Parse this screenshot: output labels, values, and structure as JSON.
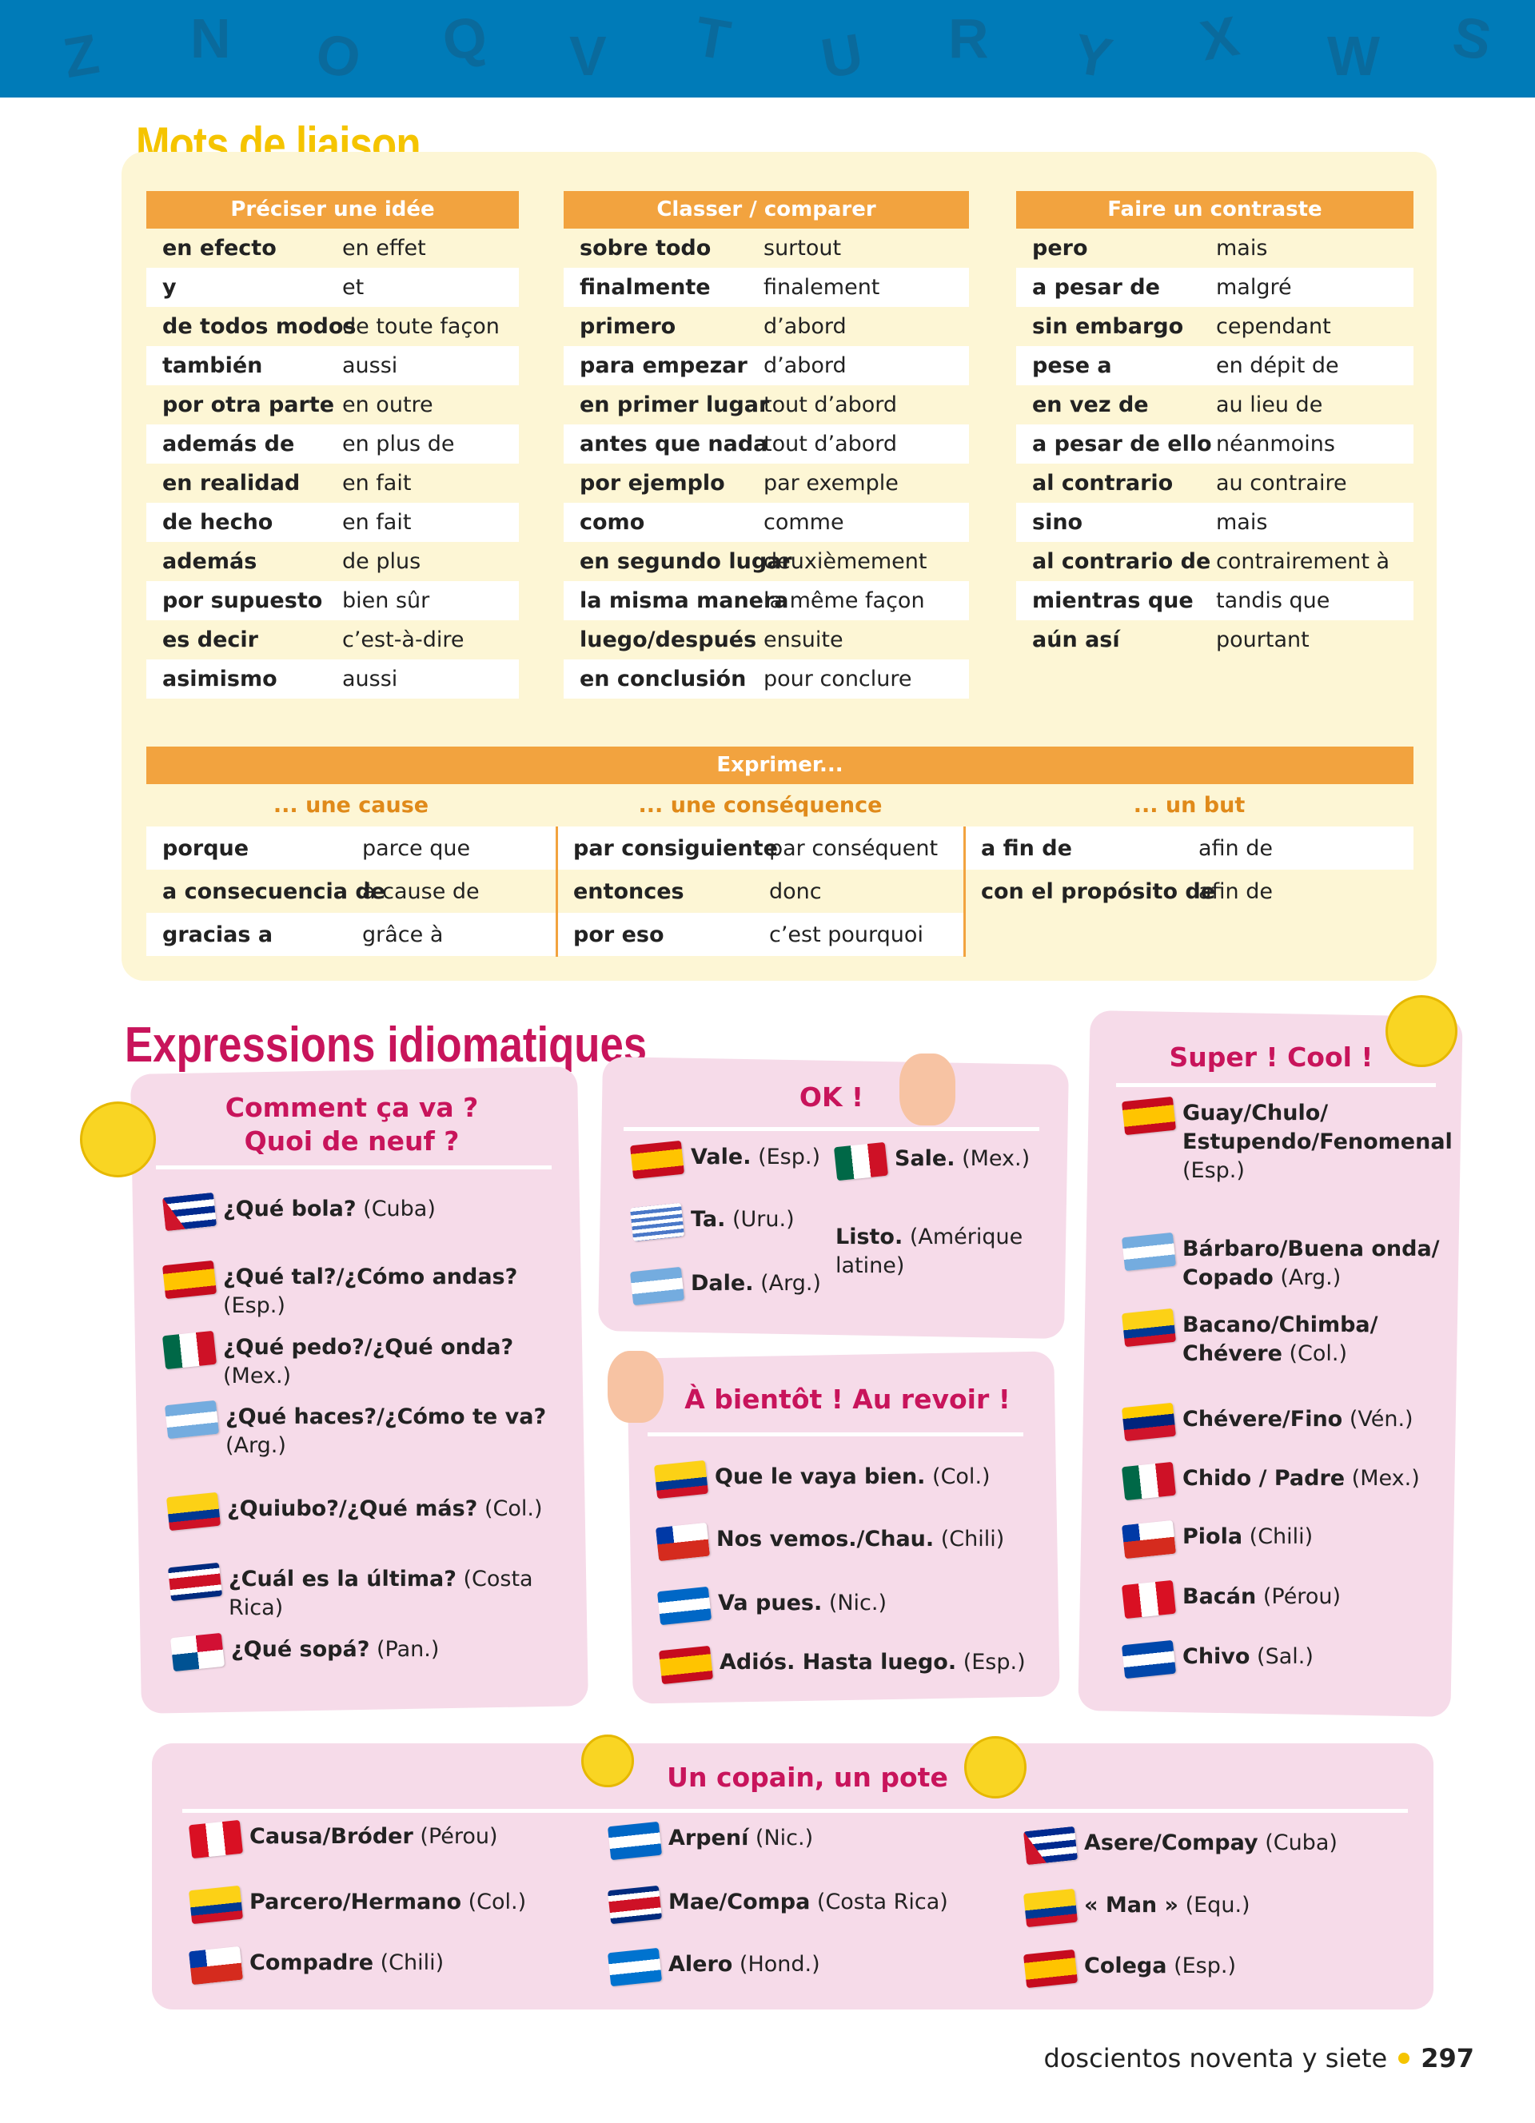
{
  "banner_letters": [
    "Z",
    "N",
    "O",
    "Q",
    "V",
    "T",
    "U",
    "R",
    "Y",
    "X",
    "W",
    "S"
  ],
  "mots": {
    "title": "Mots de liaison",
    "tables": [
      {
        "header": "Préciser une idée",
        "rows": [
          [
            "en efecto",
            "en effet"
          ],
          [
            "y",
            "et"
          ],
          [
            "de todos modos",
            "de toute façon"
          ],
          [
            "también",
            "aussi"
          ],
          [
            "por otra parte",
            "en outre"
          ],
          [
            "además de",
            "en plus de"
          ],
          [
            "en realidad",
            "en fait"
          ],
          [
            "de hecho",
            "en fait"
          ],
          [
            "además",
            "de plus"
          ],
          [
            "por supuesto",
            "bien sûr"
          ],
          [
            "es decir",
            "c’est-à-dire"
          ],
          [
            "asimismo",
            "aussi"
          ]
        ]
      },
      {
        "header": "Classer / comparer",
        "rows": [
          [
            "sobre todo",
            "surtout"
          ],
          [
            "finalmente",
            "finalement"
          ],
          [
            "primero",
            "d’abord"
          ],
          [
            "para empezar",
            "d’abord"
          ],
          [
            "en primer lugar",
            "tout d’abord"
          ],
          [
            "antes que nada",
            "tout d’abord"
          ],
          [
            "por ejemplo",
            "par exemple"
          ],
          [
            "como",
            "comme"
          ],
          [
            "en segundo lugar",
            "deuxièmement"
          ],
          [
            "la misma manera",
            "la même façon"
          ],
          [
            "luego/después",
            "ensuite"
          ],
          [
            "en conclusión",
            "pour conclure"
          ]
        ]
      },
      {
        "header": "Faire un contraste",
        "rows": [
          [
            "pero",
            "mais"
          ],
          [
            "a pesar de",
            "malgré"
          ],
          [
            "sin embargo",
            "cependant"
          ],
          [
            "pese a",
            "en dépit de"
          ],
          [
            "en vez de",
            "au lieu de"
          ],
          [
            "a pesar de ello",
            "néanmoins"
          ],
          [
            "al contrario",
            "au contraire"
          ],
          [
            "sino",
            "mais"
          ],
          [
            "al contrario de",
            "contrairement à"
          ],
          [
            "mientras que",
            "tandis que"
          ],
          [
            "aún así",
            "pourtant"
          ]
        ]
      }
    ],
    "exprimer": {
      "header": "Exprimer...",
      "groups": [
        {
          "title": "... une cause",
          "rows": [
            [
              "porque",
              "parce que"
            ],
            [
              "a consecuencia de",
              "à cause de"
            ],
            [
              "gracias a",
              "grâce à"
            ]
          ]
        },
        {
          "title": "... une conséquence",
          "rows": [
            [
              "par consiguiente",
              "par conséquent"
            ],
            [
              "entonces",
              "donc"
            ],
            [
              "por eso",
              "c’est pourquoi"
            ]
          ]
        },
        {
          "title": "... un but",
          "rows": [
            [
              "a fin de",
              "afin de"
            ],
            [
              "con el propósito de",
              "afin de"
            ]
          ]
        }
      ]
    }
  },
  "expressions": {
    "title": "Expressions idiomatiques",
    "ca_va": {
      "title": "Comment ça va ?\nQuoi de neuf ?",
      "items": [
        {
          "flag": "cu",
          "expr": "¿Qué bola?",
          "country": "(Cuba)"
        },
        {
          "flag": "es",
          "expr": "¿Qué tal?/¿Cómo andas?",
          "country": "(Esp.)"
        },
        {
          "flag": "mx",
          "expr": "¿Qué pedo?/¿Qué onda?",
          "country": "(Mex.)"
        },
        {
          "flag": "ar",
          "expr": "¿Qué haces?/¿Cómo te va?",
          "country": "(Arg.)"
        },
        {
          "flag": "co",
          "expr": "¿Quiubo?/¿Qué más?",
          "country": "(Col.)"
        },
        {
          "flag": "cr",
          "expr": "¿Cuál es la última?",
          "country": "(Costa Rica)"
        },
        {
          "flag": "pa",
          "expr": "¿Qué sopá?",
          "country": "(Pan.)"
        }
      ]
    },
    "ok": {
      "title": "OK !",
      "items": [
        {
          "flag": "es",
          "expr": "Vale.",
          "country": "(Esp.)"
        },
        {
          "flag": "mx",
          "expr": "Sale.",
          "country": "(Mex.)"
        },
        {
          "flag": "uy",
          "expr": "Ta.",
          "country": "(Uru.)"
        },
        {
          "flag": "",
          "expr": "Listo.",
          "country": "(Amérique latine)"
        },
        {
          "flag": "ar",
          "expr": "Dale.",
          "country": "(Arg.)"
        }
      ]
    },
    "bientot": {
      "title": "À bientôt ! Au revoir !",
      "items": [
        {
          "flag": "co",
          "expr": "Que le vaya bien.",
          "country": "(Col.)"
        },
        {
          "flag": "cl",
          "expr": "Nos vemos./Chau.",
          "country": "(Chili)"
        },
        {
          "flag": "ni",
          "expr": "Va pues.",
          "country": "(Nic.)"
        },
        {
          "flag": "es",
          "expr": "Adiós. Hasta luego.",
          "country": "(Esp.)"
        }
      ]
    },
    "super": {
      "title": "Super ! Cool !",
      "items": [
        {
          "flag": "es",
          "expr": "Guay/Chulo/ Estupendo/Fenomenal",
          "country": "(Esp.)"
        },
        {
          "flag": "ar",
          "expr": "Bárbaro/Buena onda/ Copado",
          "country": "(Arg.)"
        },
        {
          "flag": "co",
          "expr": "Bacano/Chimba/ Chévere",
          "country": "(Col.)"
        },
        {
          "flag": "ve",
          "expr": "Chévere/Fino",
          "country": "(Vén.)"
        },
        {
          "flag": "mx",
          "expr": "Chido / Padre",
          "country": "(Mex.)"
        },
        {
          "flag": "cl",
          "expr": "Piola",
          "country": "(Chili)"
        },
        {
          "flag": "pe",
          "expr": "Bacán",
          "country": "(Pérou)"
        },
        {
          "flag": "sv",
          "expr": "Chivo",
          "country": "(Sal.)"
        }
      ]
    },
    "copain": {
      "title": "Un copain, un pote",
      "items": [
        {
          "flag": "pe",
          "expr": "Causa/Bróder",
          "country": "(Pérou)"
        },
        {
          "flag": "co",
          "expr": "Parcero/Hermano",
          "country": "(Col.)"
        },
        {
          "flag": "cl",
          "expr": "Compadre",
          "country": "(Chili)"
        },
        {
          "flag": "ni",
          "expr": "Arpení",
          "country": "(Nic.)"
        },
        {
          "flag": "cr",
          "expr": "Mae/Compa",
          "country": "(Costa Rica)"
        },
        {
          "flag": "hn",
          "expr": "Alero",
          "country": "(Hond.)"
        },
        {
          "flag": "cu",
          "expr": "Asere/Compay",
          "country": "(Cuba)"
        },
        {
          "flag": "ec",
          "expr": "« Man »",
          "country": "(Equ.)"
        },
        {
          "flag": "es",
          "expr": "Colega",
          "country": "(Esp.)"
        }
      ]
    }
  },
  "footer": {
    "text": "doscientos noventa y siete",
    "page": "297"
  },
  "colors": {
    "banner": "#007bb8",
    "orange": "#f2a33f",
    "yellow_title": "#f5c400",
    "pink_title": "#c8145b",
    "pink_box": "#f6dbe9",
    "cream_box": "#fdf6d5"
  }
}
